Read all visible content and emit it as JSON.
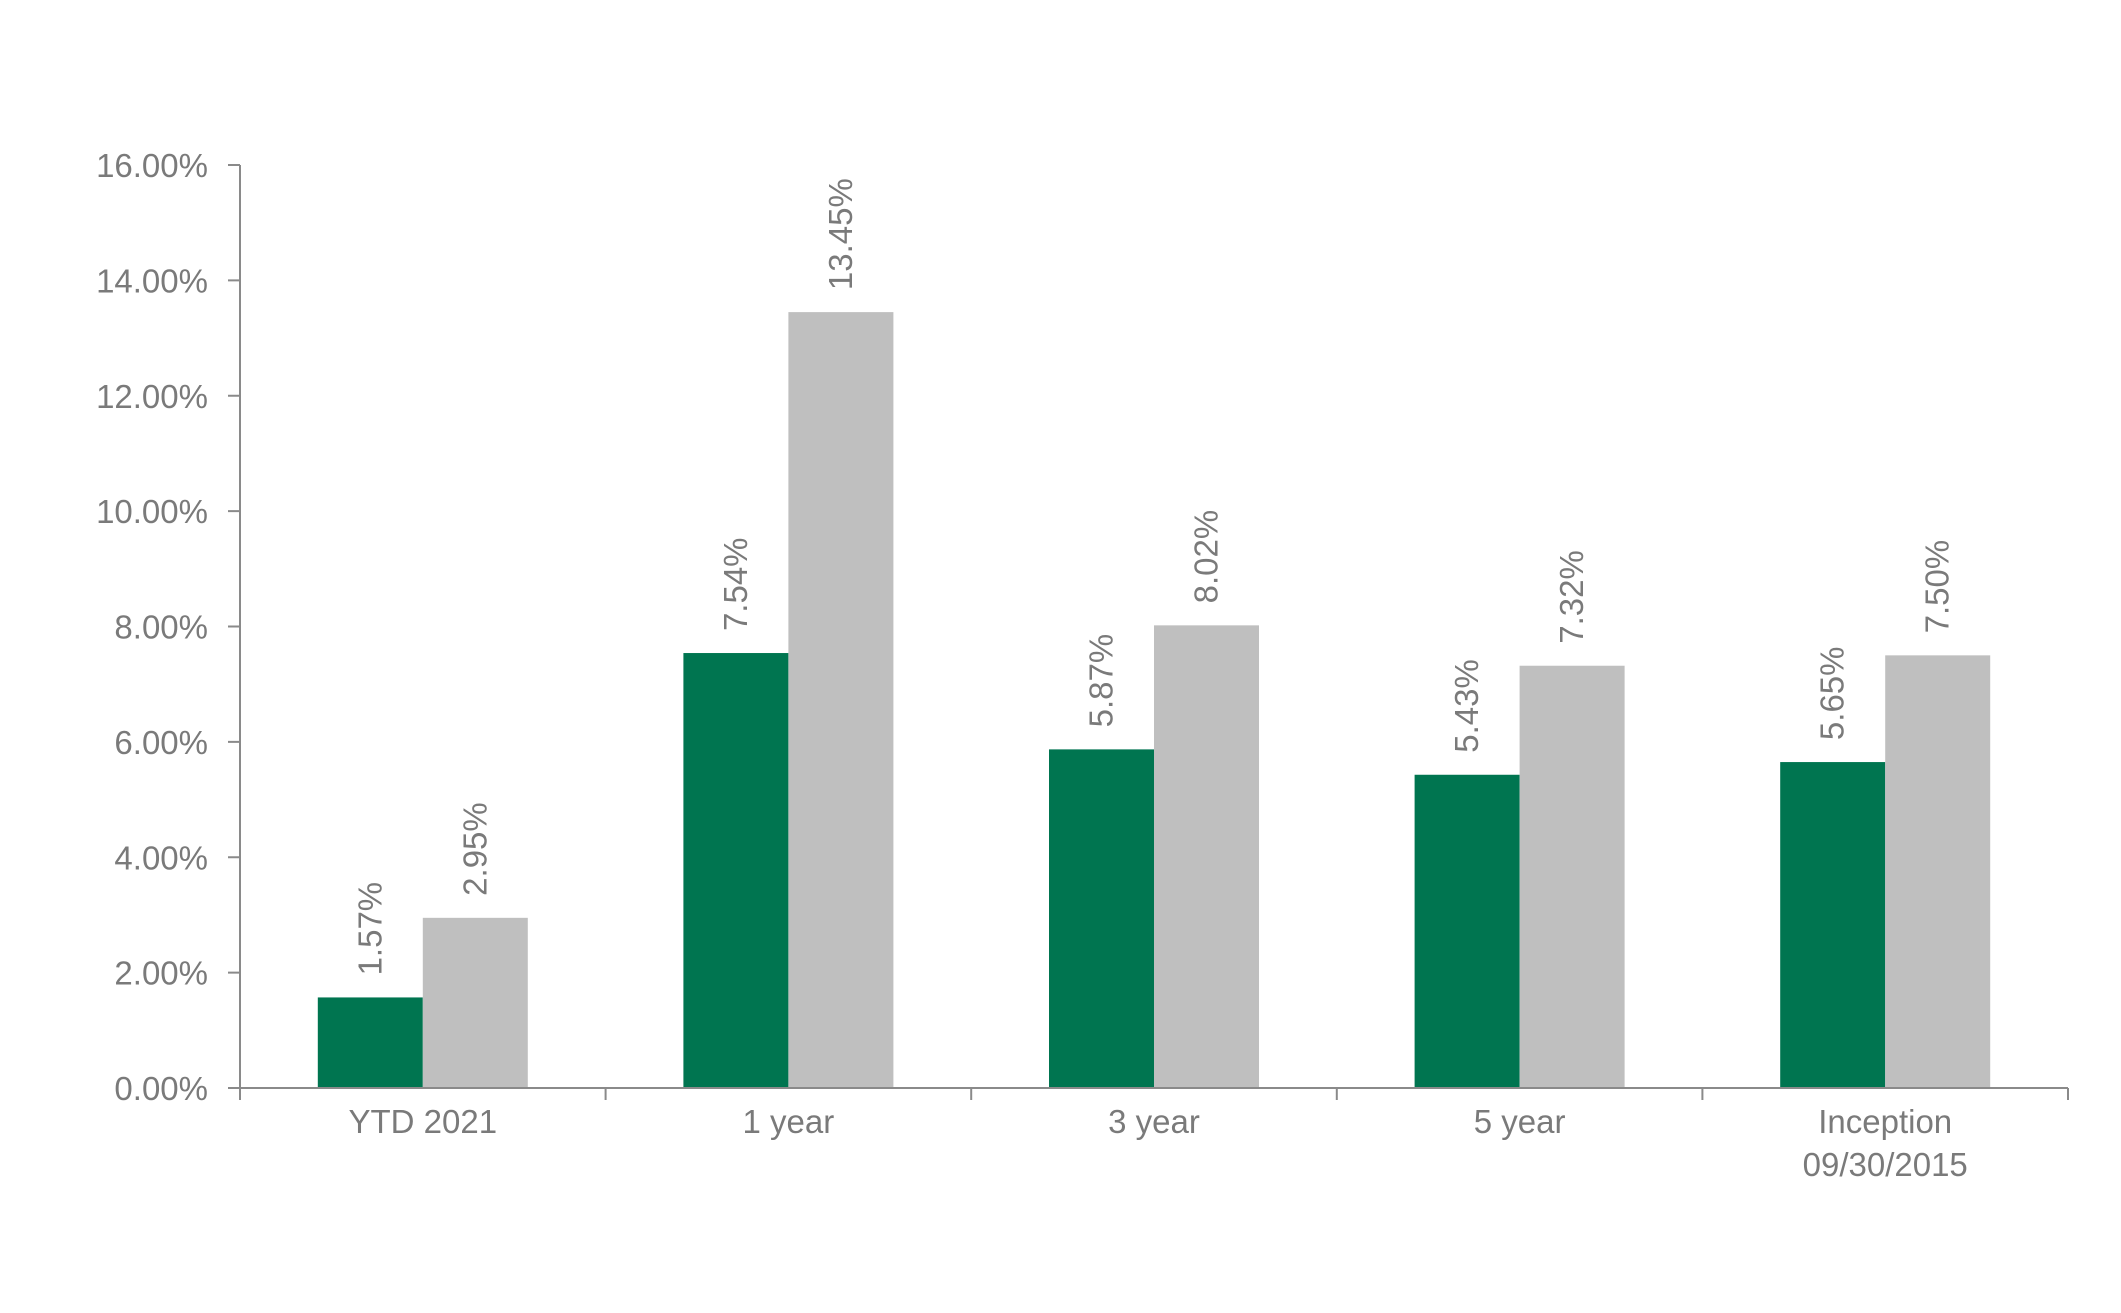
{
  "chart_data": {
    "type": "bar",
    "categories": [
      [
        "YTD 2021"
      ],
      [
        "1 year"
      ],
      [
        "3 year"
      ],
      [
        "5 year"
      ],
      [
        "Inception",
        "09/30/2015"
      ]
    ],
    "series": [
      {
        "color": "#007550",
        "values": [
          1.57,
          7.54,
          5.87,
          5.43,
          5.65
        ]
      },
      {
        "color": "#bfbfbf",
        "values": [
          2.95,
          13.45,
          8.02,
          7.32,
          7.5
        ]
      }
    ],
    "value_format": "0.00%",
    "ylim": [
      0,
      16
    ],
    "ytick_step": 2,
    "grid": false,
    "data_labels": "rotated-vertical above bars",
    "text_color": "#7a7a7a",
    "axis_color": "#8a8a8a"
  }
}
